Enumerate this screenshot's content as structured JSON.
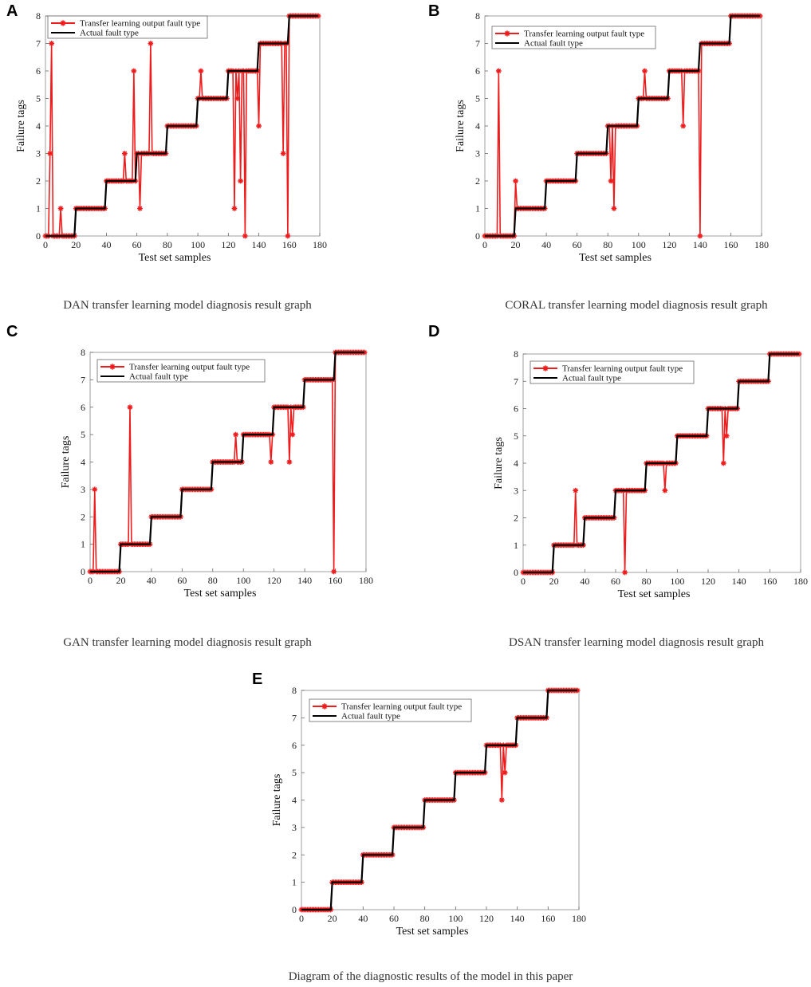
{
  "figure": {
    "legend": {
      "predicted": "Transfer learning output fault type",
      "actual": "Actual fault type"
    },
    "colors": {
      "predicted": "#ee1c1c",
      "actual": "#000000",
      "axis": "#444444"
    }
  },
  "chart_data": [
    {
      "panel": "A",
      "type": "line",
      "caption": "DAN transfer learning model diagnosis result graph",
      "xlabel": "Test set samples",
      "ylabel": "Failure tags",
      "xlim": [
        0,
        180
      ],
      "ylim": [
        0,
        8
      ],
      "xticks": [
        0,
        20,
        40,
        60,
        80,
        100,
        120,
        140,
        160,
        180
      ],
      "yticks": [
        0,
        1,
        2,
        3,
        4,
        5,
        6,
        7,
        8
      ],
      "series": [
        {
          "name": "Transfer learning output fault type",
          "errors": [
            [
              3,
              3
            ],
            [
              4,
              7
            ],
            [
              10,
              1
            ],
            [
              39,
              1
            ],
            [
              52,
              3
            ],
            [
              58,
              6
            ],
            [
              62,
              1
            ],
            [
              69,
              7
            ],
            [
              102,
              6
            ],
            [
              124,
              1
            ],
            [
              126,
              5
            ],
            [
              128,
              2
            ],
            [
              131,
              0
            ],
            [
              140,
              4
            ],
            [
              156,
              3
            ],
            [
              159,
              0
            ]
          ]
        },
        {
          "name": "Actual fault type",
          "pattern": "0-19:0, 20-39:1, 40-59:2, 60-79:3, 80-99:4, 100-119:5, 120-139:6, 140-159:7, 160-179:8"
        }
      ]
    },
    {
      "panel": "B",
      "type": "line",
      "caption": "CORAL transfer learning model diagnosis result graph",
      "xlabel": "Test set samples",
      "ylabel": "Failure tags",
      "xlim": [
        0,
        180
      ],
      "ylim": [
        0,
        8
      ],
      "xticks": [
        0,
        20,
        40,
        60,
        80,
        100,
        120,
        140,
        160,
        180
      ],
      "yticks": [
        0,
        1,
        2,
        3,
        4,
        5,
        6,
        7,
        8
      ],
      "series": [
        {
          "name": "Transfer learning output fault type",
          "errors": [
            [
              9,
              6
            ],
            [
              20,
              2
            ],
            [
              82,
              2
            ],
            [
              84,
              1
            ],
            [
              104,
              6
            ],
            [
              129,
              4
            ],
            [
              140,
              0
            ]
          ]
        },
        {
          "name": "Actual fault type",
          "pattern": "0-19:0, 20-39:1, 40-59:2, 60-79:3, 80-99:4, 100-119:5, 120-139:6, 140-159:7, 160-179:8"
        }
      ]
    },
    {
      "panel": "C",
      "type": "line",
      "caption": "GAN transfer learning model diagnosis result graph",
      "xlabel": "Test set samples",
      "ylabel": "Failure tags",
      "xlim": [
        0,
        180
      ],
      "ylim": [
        0,
        8
      ],
      "xticks": [
        0,
        20,
        40,
        60,
        80,
        100,
        120,
        140,
        160,
        180
      ],
      "yticks": [
        0,
        1,
        2,
        3,
        4,
        5,
        6,
        7,
        8
      ],
      "series": [
        {
          "name": "Transfer learning output fault type",
          "errors": [
            [
              3,
              3
            ],
            [
              26,
              6
            ],
            [
              95,
              5
            ],
            [
              118,
              4
            ],
            [
              130,
              4
            ],
            [
              132,
              5
            ],
            [
              159,
              0
            ]
          ]
        },
        {
          "name": "Actual fault type",
          "pattern": "0-19:0, 20-39:1, 40-59:2, 60-79:3, 80-99:4, 100-119:5, 120-139:6, 140-159:7, 160-179:8"
        }
      ]
    },
    {
      "panel": "D",
      "type": "line",
      "caption": "DSAN transfer learning model diagnosis result graph",
      "xlabel": "Test set samples",
      "ylabel": "Failure tags",
      "xlim": [
        0,
        180
      ],
      "ylim": [
        0,
        8
      ],
      "xticks": [
        0,
        20,
        40,
        60,
        80,
        100,
        120,
        140,
        160,
        180
      ],
      "yticks": [
        0,
        1,
        2,
        3,
        4,
        5,
        6,
        7,
        8
      ],
      "series": [
        {
          "name": "Transfer learning output fault type",
          "errors": [
            [
              34,
              3
            ],
            [
              66,
              0
            ],
            [
              92,
              3
            ],
            [
              130,
              4
            ],
            [
              132,
              5
            ]
          ]
        },
        {
          "name": "Actual fault type",
          "pattern": "0-19:0, 20-39:1, 40-59:2, 60-79:3, 80-99:4, 100-119:5, 120-139:6, 140-159:7, 160-179:8"
        }
      ]
    },
    {
      "panel": "E",
      "type": "line",
      "caption": "Diagram of the diagnostic results of the model in this paper",
      "xlabel": "Test set samples",
      "ylabel": "Failure tags",
      "xlim": [
        0,
        180
      ],
      "ylim": [
        0,
        8
      ],
      "xticks": [
        0,
        20,
        40,
        60,
        80,
        100,
        120,
        140,
        160,
        180
      ],
      "yticks": [
        0,
        1,
        2,
        3,
        4,
        5,
        6,
        7,
        8
      ],
      "series": [
        {
          "name": "Transfer learning output fault type",
          "errors": [
            [
              130,
              4
            ],
            [
              132,
              5
            ]
          ]
        },
        {
          "name": "Actual fault type",
          "pattern": "0-19:0, 20-39:1, 40-59:2, 60-79:3, 80-99:4, 100-119:5, 120-139:6, 140-159:7, 160-179:8"
        }
      ]
    }
  ]
}
